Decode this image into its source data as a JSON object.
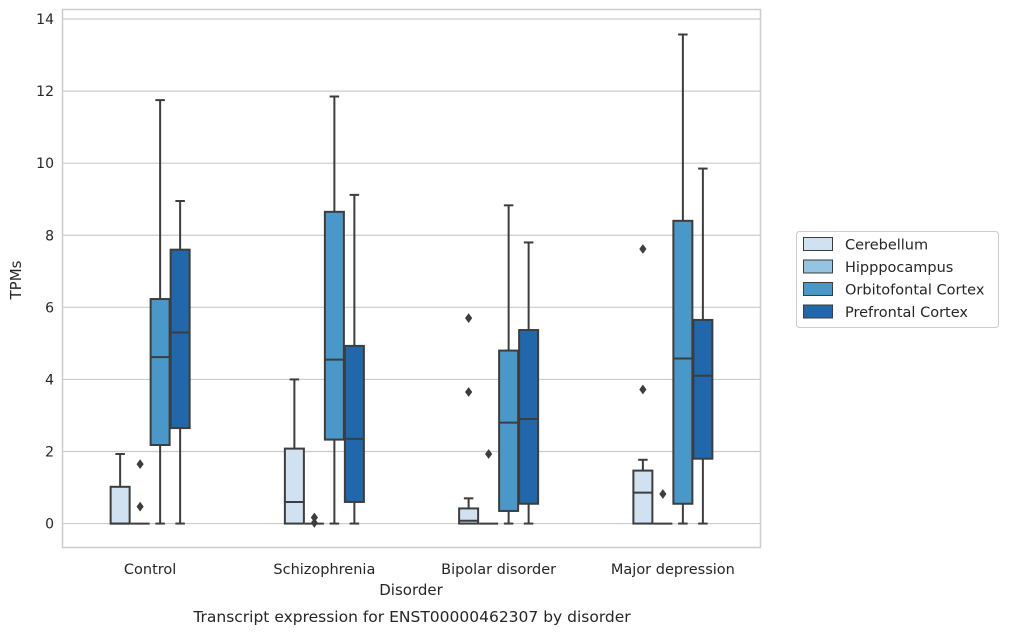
{
  "chart_data": {
    "type": "box",
    "title": "",
    "caption": "Transcript expression for ENST00000462307 by disorder",
    "xlabel": "Disorder",
    "ylabel": "TPMs",
    "ylim": [
      -0.65,
      14.25
    ],
    "yticks": [
      0,
      2,
      4,
      6,
      8,
      10,
      12,
      14
    ],
    "grid": "horizontal",
    "legend_position": "right",
    "categories": [
      "Control",
      "Schizophrenia",
      "Bipolar disorder",
      "Major depression"
    ],
    "series": [
      {
        "name": "Cerebellum",
        "color": "#d0e1f2",
        "boxes": [
          {
            "whisker_low": 0,
            "q1": 0,
            "median": 0,
            "q3": 1.02,
            "whisker_high": 1.93,
            "outliers": []
          },
          {
            "whisker_low": 0,
            "q1": 0,
            "median": 0.6,
            "q3": 2.08,
            "whisker_high": 4.0,
            "outliers": []
          },
          {
            "whisker_low": 0,
            "q1": 0,
            "median": 0.08,
            "q3": 0.42,
            "whisker_high": 0.7,
            "outliers": [
              3.65,
              5.7
            ]
          },
          {
            "whisker_low": 0,
            "q1": 0,
            "median": 0.86,
            "q3": 1.47,
            "whisker_high": 1.77,
            "outliers": [
              3.72,
              7.62
            ]
          }
        ]
      },
      {
        "name": "Hipppocampus",
        "color": "#94c4df",
        "boxes": [
          {
            "whisker_low": 0,
            "q1": 0,
            "median": 0,
            "q3": 0,
            "whisker_high": 0,
            "outliers": [
              0.47,
              1.65
            ]
          },
          {
            "whisker_low": 0,
            "q1": 0,
            "median": 0,
            "q3": 0,
            "whisker_high": 0,
            "outliers": [
              0.02,
              0.17
            ]
          },
          {
            "whisker_low": 0,
            "q1": 0,
            "median": 0,
            "q3": 0,
            "whisker_high": 0,
            "outliers": [
              1.93
            ]
          },
          {
            "whisker_low": 0,
            "q1": 0,
            "median": 0,
            "q3": 0,
            "whisker_high": 0,
            "outliers": [
              0.82
            ]
          }
        ]
      },
      {
        "name": "Orbitofontal Cortex",
        "color": "#4a98c9",
        "boxes": [
          {
            "whisker_low": 0,
            "q1": 2.18,
            "median": 4.62,
            "q3": 6.23,
            "whisker_high": 11.75,
            "outliers": []
          },
          {
            "whisker_low": 0,
            "q1": 2.33,
            "median": 4.55,
            "q3": 8.65,
            "whisker_high": 11.85,
            "outliers": []
          },
          {
            "whisker_low": 0,
            "q1": 0.35,
            "median": 2.8,
            "q3": 4.8,
            "whisker_high": 8.83,
            "outliers": []
          },
          {
            "whisker_low": 0,
            "q1": 0.55,
            "median": 4.58,
            "q3": 8.4,
            "whisker_high": 13.57,
            "outliers": []
          }
        ]
      },
      {
        "name": "Prefrontal Cortex",
        "color": "#2167ac",
        "boxes": [
          {
            "whisker_low": 0,
            "q1": 2.65,
            "median": 5.3,
            "q3": 7.6,
            "whisker_high": 8.95,
            "outliers": []
          },
          {
            "whisker_low": 0,
            "q1": 0.6,
            "median": 2.35,
            "q3": 4.93,
            "whisker_high": 9.12,
            "outliers": []
          },
          {
            "whisker_low": 0,
            "q1": 0.55,
            "median": 2.9,
            "q3": 5.37,
            "whisker_high": 7.8,
            "outliers": []
          },
          {
            "whisker_low": 0,
            "q1": 1.8,
            "median": 4.1,
            "q3": 5.65,
            "whisker_high": 9.85,
            "outliers": []
          }
        ]
      }
    ]
  }
}
